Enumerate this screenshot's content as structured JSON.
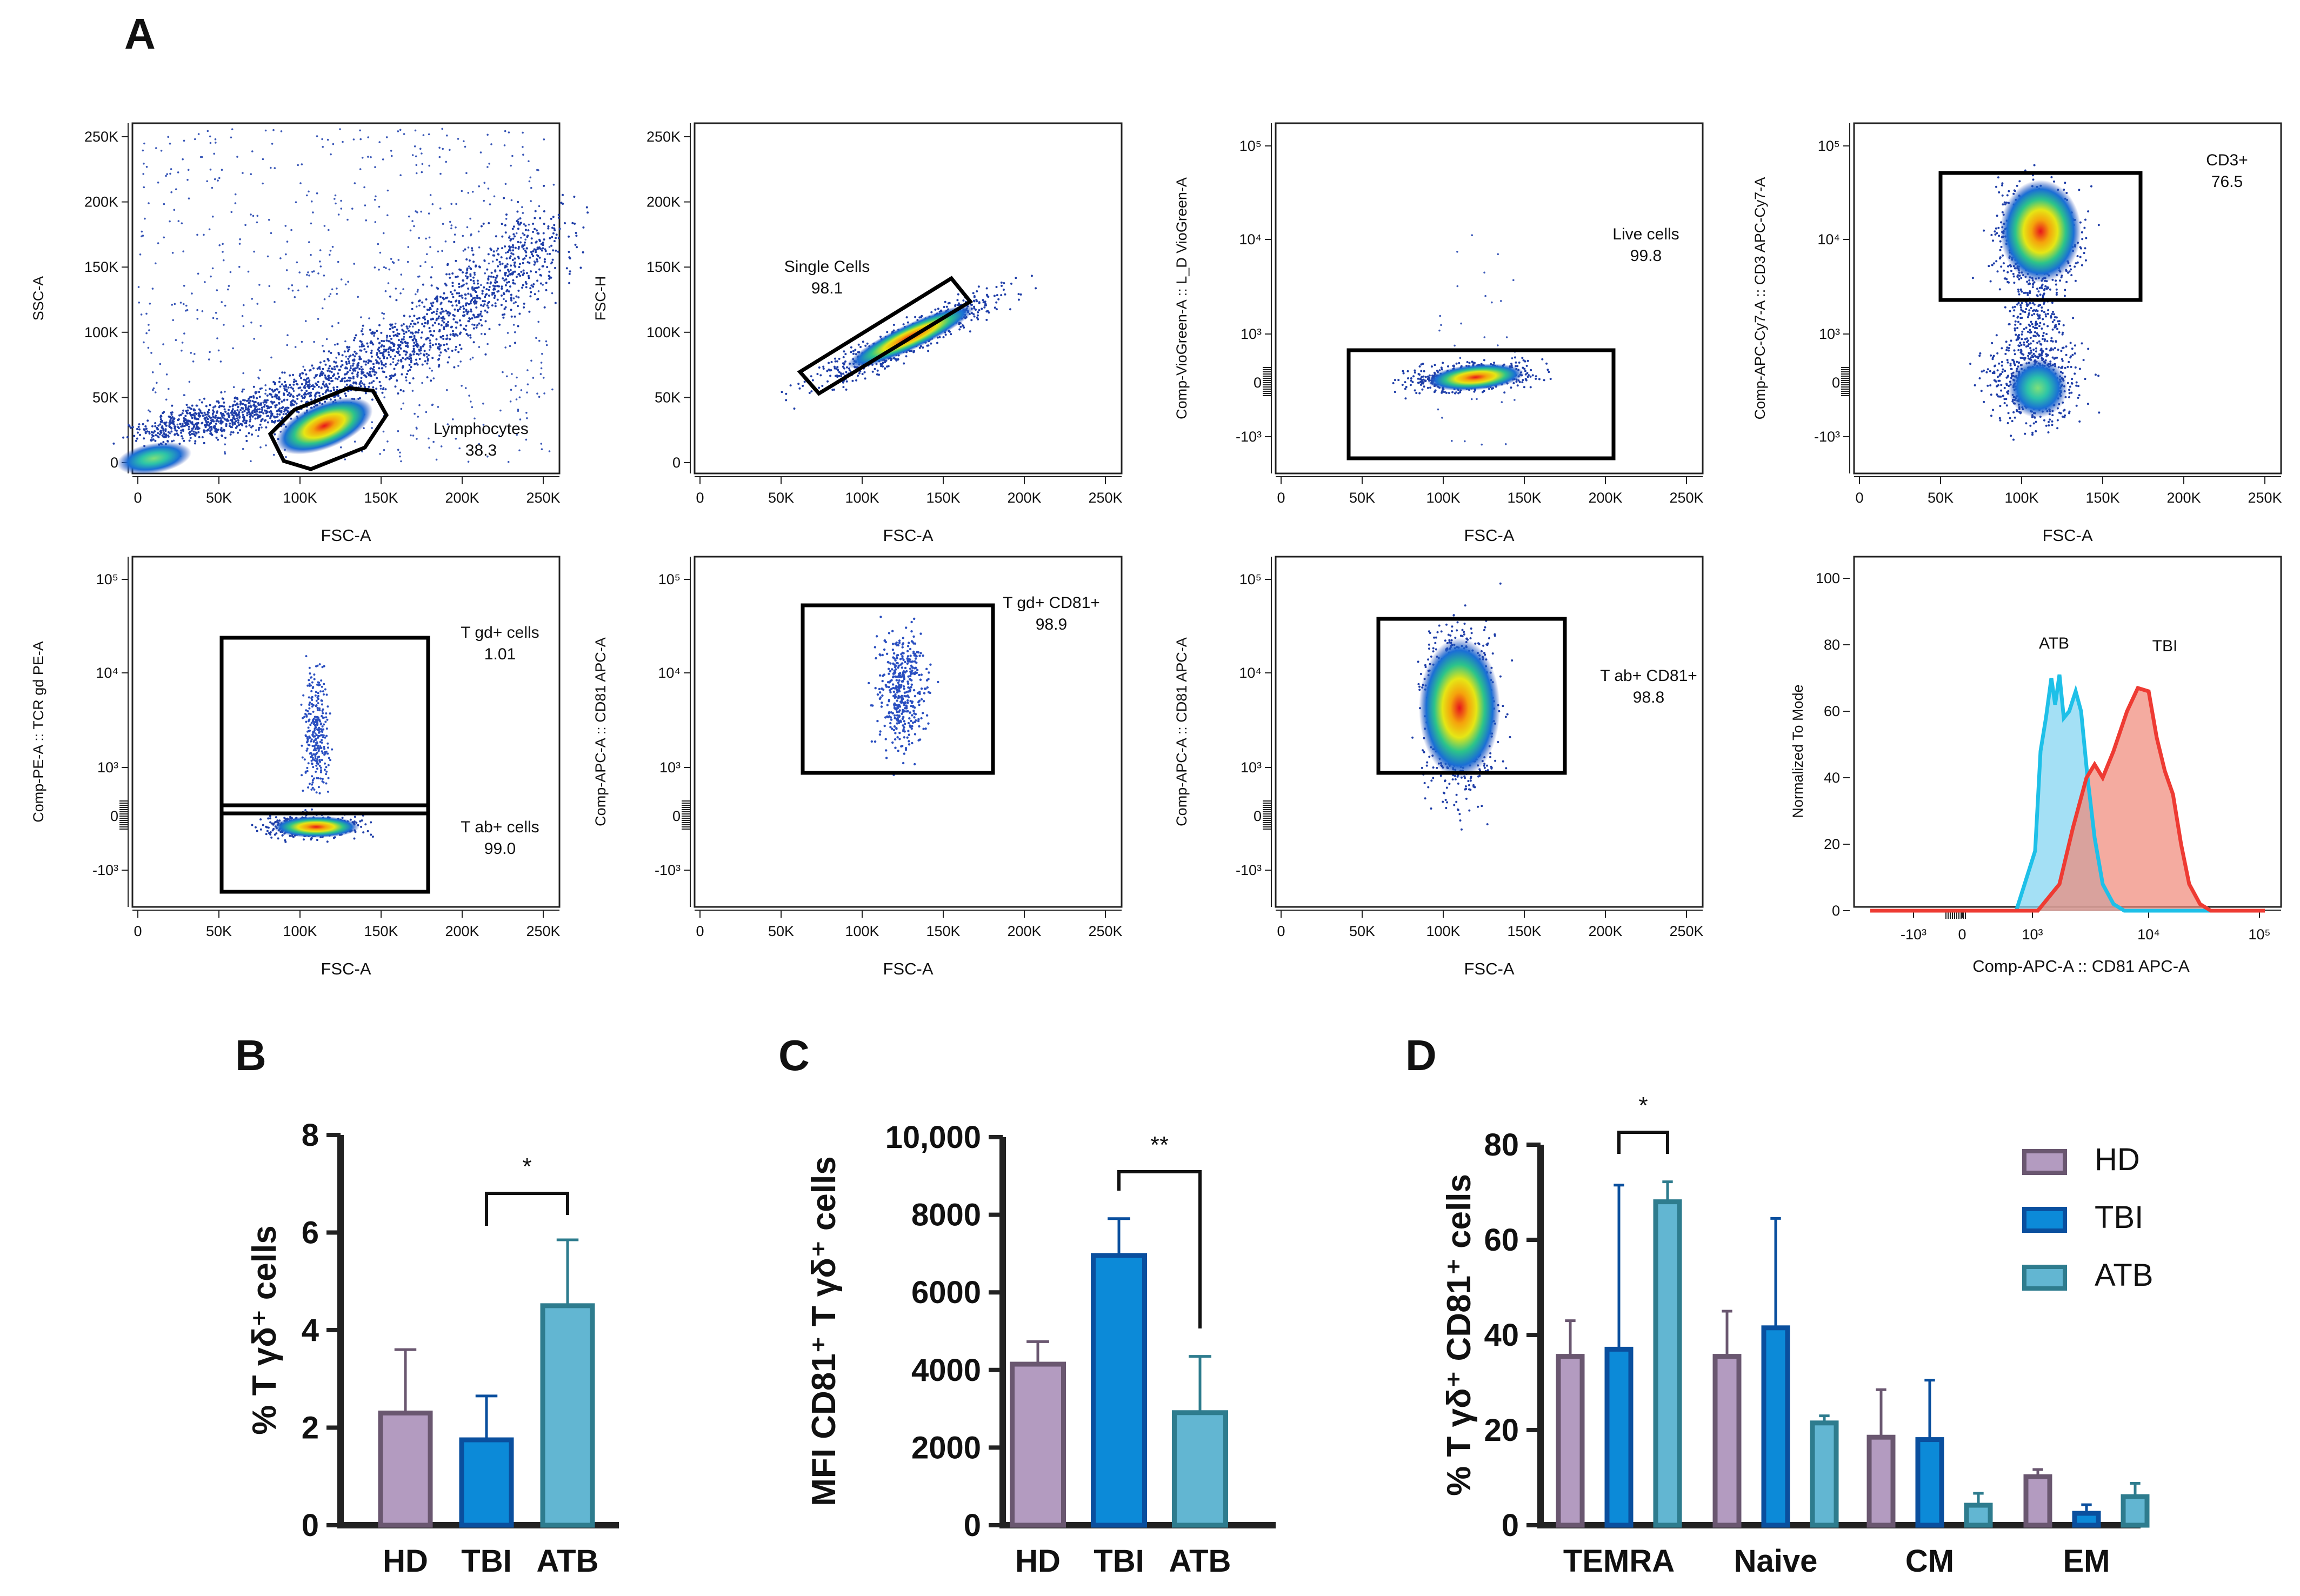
{
  "panel_labels": [
    "A",
    "B",
    "C",
    "D"
  ],
  "flow_plots": [
    {
      "id": "lymph",
      "xlabel": "FSC-A",
      "ylabel": "SSC-A",
      "xticks": [
        "0",
        "50K",
        "100K",
        "150K",
        "200K",
        "250K"
      ],
      "yticks": [
        "0",
        "50K",
        "100K",
        "150K",
        "200K",
        "250K"
      ],
      "gate_label": "Lymphocytes",
      "gate_value": "38.3"
    },
    {
      "id": "single",
      "xlabel": "FSC-A",
      "ylabel": "FSC-H",
      "xticks": [
        "0",
        "50K",
        "100K",
        "150K",
        "200K",
        "250K"
      ],
      "yticks": [
        "0",
        "50K",
        "100K",
        "150K",
        "200K",
        "250K"
      ],
      "gate_label": "Single Cells",
      "gate_value": "98.1"
    },
    {
      "id": "live",
      "xlabel": "FSC-A",
      "ylabel": "Comp-VioGreen-A :: L_D VioGreen-A",
      "xticks": [
        "0",
        "50K",
        "100K",
        "150K",
        "200K",
        "250K"
      ],
      "yticks": [
        "10⁵",
        "10⁴",
        "10³",
        "0",
        "-10³"
      ],
      "gate_label": "Live cells",
      "gate_value": "99.8"
    },
    {
      "id": "cd3",
      "xlabel": "FSC-A",
      "ylabel": "Comp-APC-Cy7-A :: CD3 APC-Cy7-A",
      "xticks": [
        "0",
        "50K",
        "100K",
        "150K",
        "200K",
        "250K"
      ],
      "yticks": [
        "10⁵",
        "10⁴",
        "10³",
        "0",
        "-10³"
      ],
      "gate_label": "CD3+",
      "gate_value": "76.5"
    },
    {
      "id": "tcr",
      "xlabel": "FSC-A",
      "ylabel": "Comp-PE-A :: TCR gd PE-A",
      "xticks": [
        "0",
        "50K",
        "100K",
        "150K",
        "200K",
        "250K"
      ],
      "yticks": [
        "10⁵",
        "10⁴",
        "10³",
        "0",
        "-10³"
      ],
      "gate_label": "T gd+ cells",
      "gate_value": "1.01",
      "gate2_label": "T ab+ cells",
      "gate2_value": "99.0"
    },
    {
      "id": "gdcd81",
      "xlabel": "FSC-A",
      "ylabel": "Comp-APC-A :: CD81 APC-A",
      "xticks": [
        "0",
        "50K",
        "100K",
        "150K",
        "200K",
        "250K"
      ],
      "yticks": [
        "10⁵",
        "10⁴",
        "10³",
        "0",
        "-10³"
      ],
      "gate_label": "T gd+ CD81+",
      "gate_value": "98.9"
    },
    {
      "id": "abcd81",
      "xlabel": "FSC-A",
      "ylabel": "Comp-APC-A :: CD81 APC-A",
      "xticks": [
        "0",
        "50K",
        "100K",
        "150K",
        "200K",
        "250K"
      ],
      "yticks": [
        "10⁵",
        "10⁴",
        "10³",
        "0",
        "-10³"
      ],
      "gate_label": "T ab+ CD81+",
      "gate_value": "98.8"
    }
  ],
  "histogram": {
    "xlabel": "Comp-APC-A :: CD81 APC-A",
    "ylabel": "Normalized To Mode",
    "yticks": [
      "0",
      "20",
      "40",
      "60",
      "80",
      "100"
    ],
    "xticks": [
      "-10³",
      "0",
      "10³",
      "10⁴",
      "10⁵"
    ],
    "series": [
      {
        "name": "ATB",
        "color": "#1EC0E8"
      },
      {
        "name": "TBI",
        "color": "#EE3B33"
      }
    ]
  },
  "colors": {
    "HD": "#B39BC0",
    "HD_edge": "#6A5770",
    "TBI": "#0C8AD8",
    "TBI_edge": "#0A4F9E",
    "ATB": "#62B6D2",
    "ATB_edge": "#2E7C8E"
  },
  "chart_data": [
    {
      "type": "bar",
      "panel": "B",
      "categories": [
        "HD",
        "TBI",
        "ATB"
      ],
      "values": [
        2.3,
        1.75,
        4.5
      ],
      "errors": [
        1.3,
        0.9,
        1.35
      ],
      "ylabel": "% T γδ⁺ cells",
      "yticks": [
        "0",
        "2",
        "4",
        "6",
        "8"
      ],
      "ylim": [
        0,
        8
      ],
      "significance": [
        {
          "from": "TBI",
          "to": "ATB",
          "label": "*"
        }
      ]
    },
    {
      "type": "bar",
      "panel": "C",
      "categories": [
        "HD",
        "TBI",
        "ATB"
      ],
      "values": [
        4150,
        6950,
        2900
      ],
      "errors": [
        580,
        950,
        1450
      ],
      "ylabel": "MFI CD81⁺ T γδ⁺ cells",
      "yticks": [
        "0",
        "2000",
        "4000",
        "6000",
        "8000",
        "10,000"
      ],
      "ylim": [
        0,
        10000
      ],
      "significance": [
        {
          "from": "TBI",
          "to": "ATB",
          "label": "**"
        }
      ]
    },
    {
      "type": "bar",
      "panel": "D",
      "categories": [
        "TEMRA",
        "Naive",
        "CM",
        "EM"
      ],
      "series": [
        {
          "name": "HD",
          "values": [
            35.5,
            35.5,
            18.5,
            10.2
          ],
          "errors": [
            7.5,
            9.5,
            10,
            1.5
          ]
        },
        {
          "name": "TBI",
          "values": [
            37,
            41.5,
            18,
            2.5
          ],
          "errors": [
            34.5,
            23,
            12.5,
            1.8
          ]
        },
        {
          "name": "ATB",
          "values": [
            68,
            21.5,
            4.2,
            6
          ],
          "errors": [
            4.2,
            1.5,
            2.5,
            2.8
          ]
        }
      ],
      "ylabel": "% T γδ⁺ CD81⁺ cells",
      "yticks": [
        "0",
        "20",
        "40",
        "60",
        "80"
      ],
      "ylim": [
        0,
        80
      ],
      "significance": [
        {
          "category": "TEMRA",
          "from": "TBI",
          "to": "ATB",
          "label": "*"
        }
      ]
    }
  ]
}
